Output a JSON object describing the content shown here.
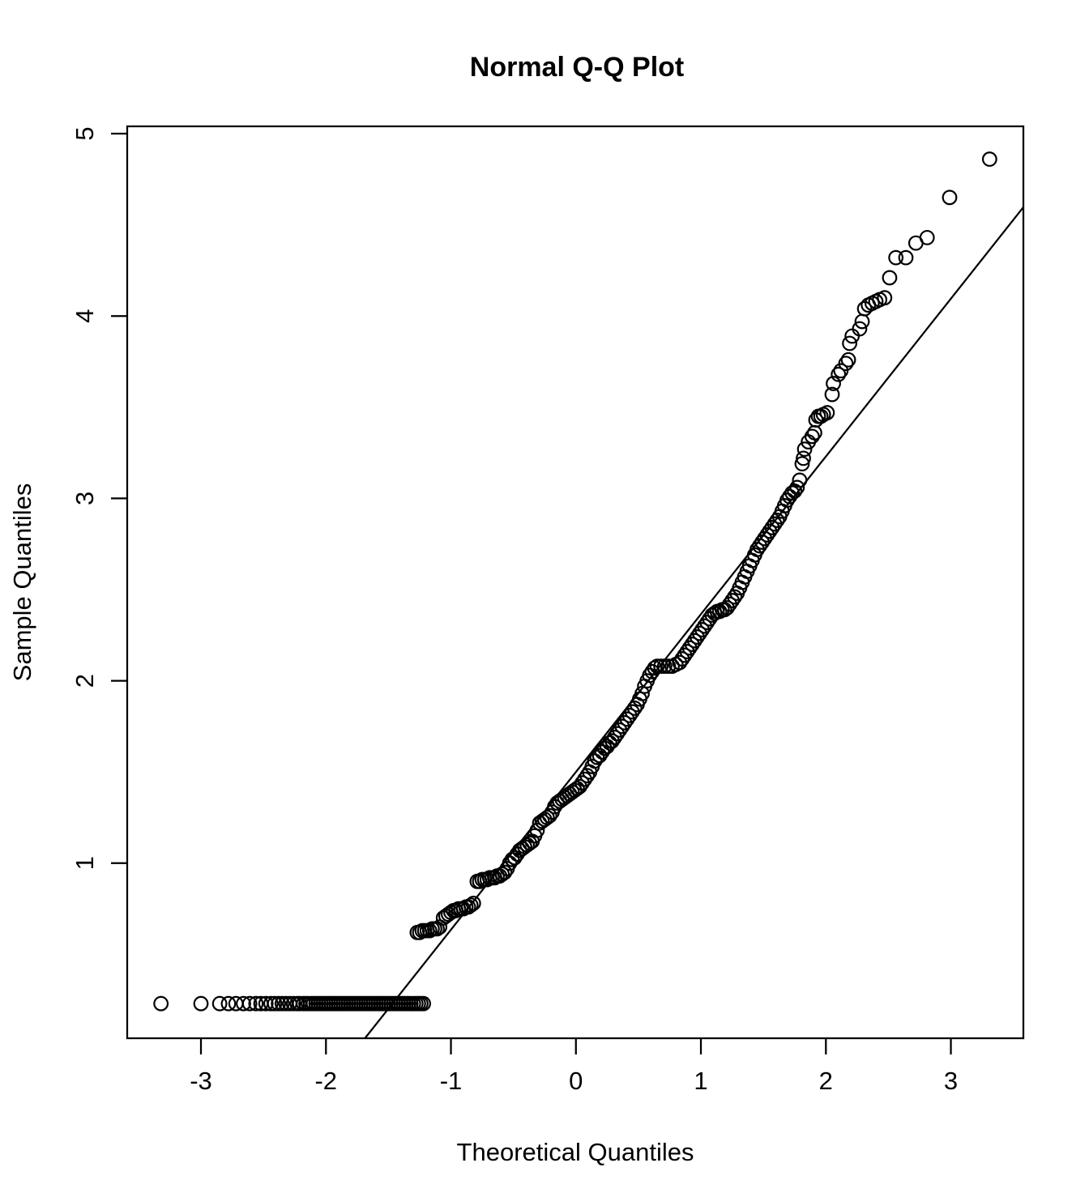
{
  "figure": {
    "background_color": "#ffffff",
    "foreground_color": "#000000"
  },
  "chart_data": {
    "type": "scatter",
    "title": "Normal Q-Q Plot",
    "xlabel": "Theoretical Quantiles",
    "ylabel": "Sample Quantiles",
    "xlim": [
      -3.59,
      3.58
    ],
    "ylim": [
      0.04,
      5.04
    ],
    "xticks": [
      -3,
      -2,
      -1,
      0,
      1,
      2,
      3
    ],
    "yticks": [
      1,
      2,
      3,
      4,
      5
    ],
    "grid": false,
    "legend_position": "none",
    "marker": "open-circle",
    "marker_color": "#000000",
    "reference_line": {
      "name": "qqline",
      "intercept": 1.5,
      "slope": 0.865,
      "color": "#000000"
    },
    "points": [
      [
        -3.32,
        0.23
      ],
      [
        -3.0,
        0.23
      ],
      [
        -2.85,
        0.23
      ],
      [
        -2.78,
        0.23
      ],
      [
        -2.72,
        0.23
      ],
      [
        -2.66,
        0.23
      ],
      [
        -2.61,
        0.23
      ],
      [
        -2.56,
        0.23
      ],
      [
        -2.52,
        0.23
      ],
      [
        -2.48,
        0.23
      ],
      [
        -2.44,
        0.23
      ],
      [
        -2.41,
        0.23
      ],
      [
        -2.38,
        0.23
      ],
      [
        -2.35,
        0.23
      ],
      [
        -2.32,
        0.23
      ],
      [
        -2.29,
        0.23
      ],
      [
        -2.26,
        0.23
      ],
      [
        -2.23,
        0.23
      ],
      [
        -2.21,
        0.23
      ],
      [
        -2.18,
        0.23
      ],
      [
        -2.16,
        0.23
      ],
      [
        -2.14,
        0.23
      ],
      [
        -2.12,
        0.23
      ],
      [
        -2.1,
        0.23
      ],
      [
        -2.08,
        0.23
      ],
      [
        -2.06,
        0.23
      ],
      [
        -2.04,
        0.23
      ],
      [
        -2.02,
        0.23
      ],
      [
        -2.0,
        0.23
      ],
      [
        -1.98,
        0.23
      ],
      [
        -1.96,
        0.23
      ],
      [
        -1.94,
        0.23
      ],
      [
        -1.92,
        0.23
      ],
      [
        -1.9,
        0.23
      ],
      [
        -1.88,
        0.23
      ],
      [
        -1.86,
        0.23
      ],
      [
        -1.84,
        0.23
      ],
      [
        -1.82,
        0.23
      ],
      [
        -1.8,
        0.23
      ],
      [
        -1.78,
        0.23
      ],
      [
        -1.76,
        0.23
      ],
      [
        -1.74,
        0.23
      ],
      [
        -1.72,
        0.23
      ],
      [
        -1.7,
        0.23
      ],
      [
        -1.68,
        0.23
      ],
      [
        -1.66,
        0.23
      ],
      [
        -1.64,
        0.23
      ],
      [
        -1.62,
        0.23
      ],
      [
        -1.6,
        0.23
      ],
      [
        -1.58,
        0.23
      ],
      [
        -1.56,
        0.23
      ],
      [
        -1.54,
        0.23
      ],
      [
        -1.52,
        0.23
      ],
      [
        -1.5,
        0.23
      ],
      [
        -1.48,
        0.23
      ],
      [
        -1.46,
        0.23
      ],
      [
        -1.44,
        0.23
      ],
      [
        -1.42,
        0.23
      ],
      [
        -1.4,
        0.23
      ],
      [
        -1.38,
        0.23
      ],
      [
        -1.36,
        0.23
      ],
      [
        -1.34,
        0.23
      ],
      [
        -1.32,
        0.23
      ],
      [
        -1.3,
        0.23
      ],
      [
        -1.28,
        0.23
      ],
      [
        -1.26,
        0.23
      ],
      [
        -1.24,
        0.23
      ],
      [
        -1.22,
        0.23
      ],
      [
        -1.27,
        0.62
      ],
      [
        -1.25,
        0.62
      ],
      [
        -1.23,
        0.63
      ],
      [
        -1.21,
        0.63
      ],
      [
        -1.19,
        0.63
      ],
      [
        -1.17,
        0.63
      ],
      [
        -1.15,
        0.64
      ],
      [
        -1.13,
        0.64
      ],
      [
        -1.11,
        0.64
      ],
      [
        -1.09,
        0.65
      ],
      [
        -1.06,
        0.7
      ],
      [
        -1.04,
        0.71
      ],
      [
        -1.02,
        0.72
      ],
      [
        -1.0,
        0.73
      ],
      [
        -0.98,
        0.74
      ],
      [
        -0.96,
        0.74
      ],
      [
        -0.94,
        0.75
      ],
      [
        -0.92,
        0.75
      ],
      [
        -0.9,
        0.75
      ],
      [
        -0.88,
        0.76
      ],
      [
        -0.86,
        0.76
      ],
      [
        -0.84,
        0.77
      ],
      [
        -0.82,
        0.78
      ],
      [
        -0.79,
        0.9
      ],
      [
        -0.77,
        0.9
      ],
      [
        -0.75,
        0.91
      ],
      [
        -0.73,
        0.91
      ],
      [
        -0.71,
        0.91
      ],
      [
        -0.69,
        0.92
      ],
      [
        -0.67,
        0.92
      ],
      [
        -0.65,
        0.92
      ],
      [
        -0.63,
        0.93
      ],
      [
        -0.61,
        0.93
      ],
      [
        -0.59,
        0.94
      ],
      [
        -0.57,
        0.95
      ],
      [
        -0.55,
        0.97
      ],
      [
        -0.53,
        1.0
      ],
      [
        -0.51,
        1.02
      ],
      [
        -0.49,
        1.03
      ],
      [
        -0.47,
        1.05
      ],
      [
        -0.45,
        1.07
      ],
      [
        -0.43,
        1.08
      ],
      [
        -0.41,
        1.09
      ],
      [
        -0.39,
        1.1
      ],
      [
        -0.37,
        1.11
      ],
      [
        -0.35,
        1.12
      ],
      [
        -0.33,
        1.15
      ],
      [
        -0.31,
        1.18
      ],
      [
        -0.29,
        1.22
      ],
      [
        -0.27,
        1.23
      ],
      [
        -0.25,
        1.24
      ],
      [
        -0.23,
        1.25
      ],
      [
        -0.21,
        1.26
      ],
      [
        -0.19,
        1.28
      ],
      [
        -0.17,
        1.31
      ],
      [
        -0.15,
        1.33
      ],
      [
        -0.13,
        1.34
      ],
      [
        -0.11,
        1.35
      ],
      [
        -0.09,
        1.36
      ],
      [
        -0.07,
        1.37
      ],
      [
        -0.05,
        1.38
      ],
      [
        -0.03,
        1.39
      ],
      [
        -0.01,
        1.4
      ],
      [
        0.01,
        1.41
      ],
      [
        0.03,
        1.42
      ],
      [
        0.05,
        1.44
      ],
      [
        0.07,
        1.46
      ],
      [
        0.09,
        1.48
      ],
      [
        0.11,
        1.5
      ],
      [
        0.13,
        1.53
      ],
      [
        0.15,
        1.56
      ],
      [
        0.17,
        1.58
      ],
      [
        0.19,
        1.59
      ],
      [
        0.21,
        1.61
      ],
      [
        0.23,
        1.63
      ],
      [
        0.25,
        1.64
      ],
      [
        0.27,
        1.66
      ],
      [
        0.29,
        1.67
      ],
      [
        0.31,
        1.69
      ],
      [
        0.33,
        1.71
      ],
      [
        0.35,
        1.73
      ],
      [
        0.37,
        1.75
      ],
      [
        0.39,
        1.77
      ],
      [
        0.41,
        1.79
      ],
      [
        0.43,
        1.81
      ],
      [
        0.45,
        1.83
      ],
      [
        0.47,
        1.85
      ],
      [
        0.49,
        1.87
      ],
      [
        0.51,
        1.9
      ],
      [
        0.53,
        1.93
      ],
      [
        0.55,
        1.97
      ],
      [
        0.57,
        2.0
      ],
      [
        0.59,
        2.03
      ],
      [
        0.61,
        2.05
      ],
      [
        0.63,
        2.07
      ],
      [
        0.65,
        2.08
      ],
      [
        0.68,
        2.08
      ],
      [
        0.71,
        2.08
      ],
      [
        0.74,
        2.08
      ],
      [
        0.77,
        2.08
      ],
      [
        0.8,
        2.09
      ],
      [
        0.83,
        2.1
      ],
      [
        0.85,
        2.12
      ],
      [
        0.87,
        2.14
      ],
      [
        0.89,
        2.16
      ],
      [
        0.91,
        2.18
      ],
      [
        0.93,
        2.2
      ],
      [
        0.95,
        2.22
      ],
      [
        0.97,
        2.24
      ],
      [
        0.99,
        2.26
      ],
      [
        1.01,
        2.28
      ],
      [
        1.03,
        2.3
      ],
      [
        1.05,
        2.32
      ],
      [
        1.07,
        2.34
      ],
      [
        1.09,
        2.36
      ],
      [
        1.11,
        2.37
      ],
      [
        1.13,
        2.38
      ],
      [
        1.15,
        2.38
      ],
      [
        1.17,
        2.39
      ],
      [
        1.19,
        2.39
      ],
      [
        1.21,
        2.4
      ],
      [
        1.23,
        2.42
      ],
      [
        1.25,
        2.44
      ],
      [
        1.27,
        2.46
      ],
      [
        1.29,
        2.48
      ],
      [
        1.31,
        2.51
      ],
      [
        1.33,
        2.54
      ],
      [
        1.35,
        2.57
      ],
      [
        1.37,
        2.6
      ],
      [
        1.39,
        2.63
      ],
      [
        1.41,
        2.66
      ],
      [
        1.43,
        2.69
      ],
      [
        1.45,
        2.72
      ],
      [
        1.47,
        2.74
      ],
      [
        1.49,
        2.76
      ],
      [
        1.51,
        2.78
      ],
      [
        1.53,
        2.8
      ],
      [
        1.55,
        2.82
      ],
      [
        1.57,
        2.84
      ],
      [
        1.59,
        2.86
      ],
      [
        1.61,
        2.88
      ],
      [
        1.63,
        2.9
      ],
      [
        1.65,
        2.93
      ],
      [
        1.67,
        2.96
      ],
      [
        1.69,
        2.99
      ],
      [
        1.71,
        3.01
      ],
      [
        1.73,
        3.03
      ],
      [
        1.75,
        3.04
      ],
      [
        1.77,
        3.06
      ],
      [
        1.79,
        3.1
      ],
      [
        1.81,
        3.19
      ],
      [
        1.82,
        3.22
      ],
      [
        1.83,
        3.27
      ],
      [
        1.86,
        3.31
      ],
      [
        1.89,
        3.34
      ],
      [
        1.91,
        3.36
      ],
      [
        1.92,
        3.43
      ],
      [
        1.94,
        3.45
      ],
      [
        1.96,
        3.45
      ],
      [
        1.98,
        3.46
      ],
      [
        2.01,
        3.47
      ],
      [
        2.05,
        3.57
      ],
      [
        2.06,
        3.63
      ],
      [
        2.1,
        3.68
      ],
      [
        2.12,
        3.7
      ],
      [
        2.16,
        3.74
      ],
      [
        2.18,
        3.76
      ],
      [
        2.19,
        3.85
      ],
      [
        2.21,
        3.89
      ],
      [
        2.27,
        3.93
      ],
      [
        2.29,
        3.97
      ],
      [
        2.31,
        4.04
      ],
      [
        2.34,
        4.06
      ],
      [
        2.37,
        4.07
      ],
      [
        2.4,
        4.08
      ],
      [
        2.43,
        4.09
      ],
      [
        2.47,
        4.1
      ],
      [
        2.51,
        4.21
      ],
      [
        2.56,
        4.32
      ],
      [
        2.64,
        4.32
      ],
      [
        2.72,
        4.4
      ],
      [
        2.81,
        4.43
      ],
      [
        2.99,
        4.65
      ],
      [
        3.31,
        4.86
      ]
    ]
  }
}
